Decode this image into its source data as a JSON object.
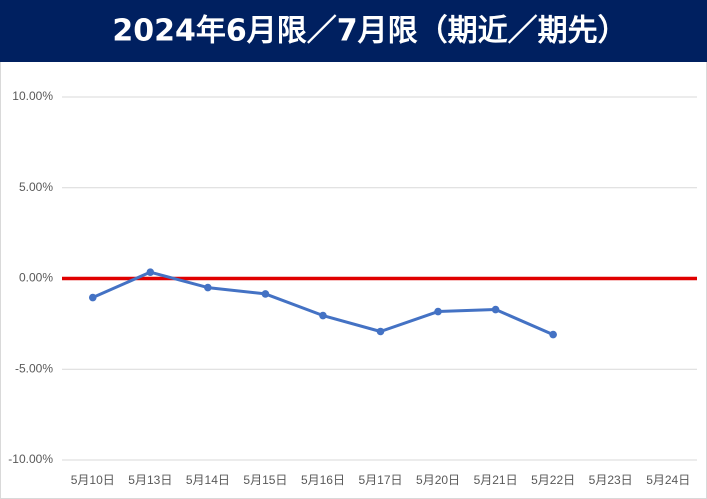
{
  "chart_data": {
    "type": "line",
    "title": "2024年6月限／7月限（期近／期先）",
    "categories": [
      "5月10日",
      "5月13日",
      "5月14日",
      "5月15日",
      "5月16日",
      "5月17日",
      "5月20日",
      "5月21日",
      "5月22日",
      "5月23日",
      "5月24日"
    ],
    "series": [
      {
        "name": "期近／期先",
        "color": "#4472c4",
        "values": [
          -1.05,
          0.35,
          -0.5,
          -0.85,
          -2.04,
          -2.92,
          -1.82,
          -1.71,
          -3.09,
          null,
          null
        ]
      }
    ],
    "ylim": [
      -10,
      10
    ],
    "yticks": [
      {
        "value": -10,
        "label": "-10.00%"
      },
      {
        "value": -5,
        "label": "-5.00%"
      },
      {
        "value": 0,
        "label": "0.00%"
      },
      {
        "value": 5,
        "label": "5.00%"
      },
      {
        "value": 10,
        "label": "10.00%"
      }
    ],
    "grid": true,
    "zero_line_color": "#e00000"
  }
}
